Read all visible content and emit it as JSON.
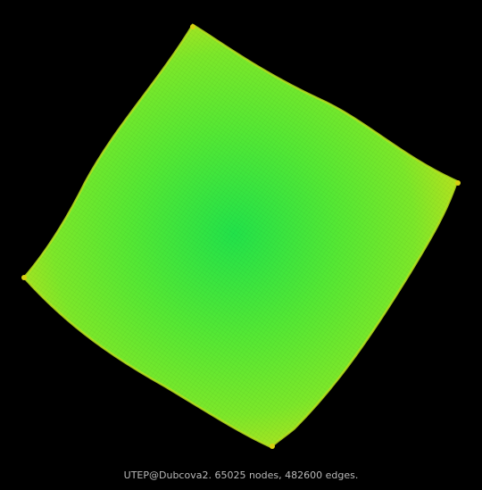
{
  "graph": {
    "name": "UTEP@Dubcova2",
    "nodes": 65025,
    "edges": 482600
  },
  "caption": "UTEP@Dubcova2. 65025 nodes, 482600 edges.",
  "colors": {
    "background": "#000000",
    "center": "#22e24a",
    "mid": "#7ce82a",
    "edge": "#b6e21e",
    "corner": "#d8d010",
    "caption_text": "#b8b8b8"
  }
}
